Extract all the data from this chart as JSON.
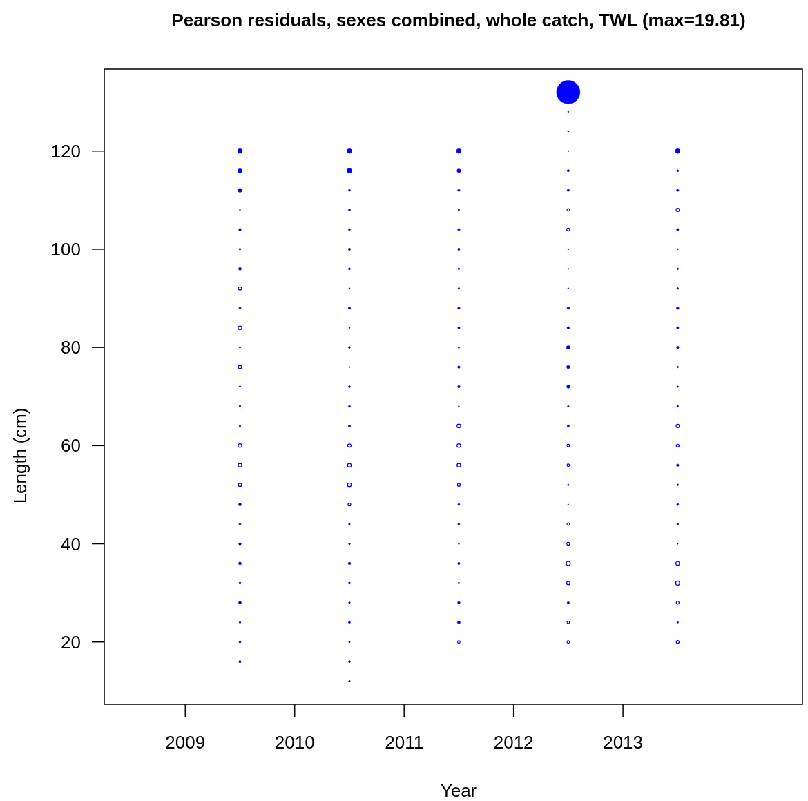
{
  "chart_data": {
    "type": "bubble",
    "title": "Pearson residuals, sexes combined, whole catch, TWL (max=19.81)",
    "xlabel": "Year",
    "ylabel": "Length (cm)",
    "xlim": [
      2008.26,
      2014.64
    ],
    "ylim": [
      7.3,
      136.7
    ],
    "xticks": [
      2009,
      2010,
      2011,
      2012,
      2013
    ],
    "yticks": [
      20,
      40,
      60,
      80,
      100,
      120
    ],
    "grid": false,
    "marker": "circle",
    "series": [
      {
        "color": "#0000ff",
        "x": [
          2009.5,
          2009.5,
          2009.5,
          2009.5,
          2009.5,
          2009.5,
          2009.5,
          2009.5,
          2009.5,
          2009.5,
          2009.5,
          2009.5,
          2009.5,
          2009.5,
          2009.5,
          2009.5,
          2009.5,
          2009.5,
          2009.5,
          2009.5,
          2009.5,
          2010.5,
          2010.5,
          2010.5,
          2010.5,
          2010.5,
          2010.5,
          2010.5,
          2010.5,
          2010.5,
          2010.5,
          2010.5,
          2010.5,
          2010.5,
          2010.5,
          2010.5,
          2010.5,
          2010.5,
          2010.5,
          2010.5,
          2010.5,
          2010.5,
          2010.5,
          2010.5,
          2010.5,
          2011.5,
          2011.5,
          2011.5,
          2011.5,
          2011.5,
          2011.5,
          2011.5,
          2011.5,
          2011.5,
          2011.5,
          2011.5,
          2011.5,
          2011.5,
          2011.5,
          2011.5,
          2011.5,
          2011.5,
          2011.5,
          2011.5,
          2011.5,
          2011.5,
          2012.5,
          2012.5,
          2012.5,
          2012.5,
          2012.5,
          2012.5,
          2012.5,
          2012.5,
          2012.5,
          2012.5,
          2012.5,
          2012.5,
          2012.5,
          2012.5,
          2012.5,
          2012.5,
          2012.5,
          2012.5,
          2012.5,
          2013.5,
          2013.5,
          2013.5,
          2013.5,
          2013.5,
          2013.5,
          2013.5,
          2013.5,
          2013.5,
          2013.5,
          2013.5,
          2013.5,
          2013.5,
          2013.5,
          2013.5,
          2013.5,
          2013.5,
          2013.5,
          2013.5
        ],
        "values": [
          120,
          116,
          112,
          108,
          104,
          100,
          96,
          88,
          80,
          72,
          68,
          64,
          48,
          44,
          40,
          36,
          32,
          28,
          24,
          20,
          16,
          120,
          116,
          112,
          108,
          104,
          100,
          96,
          92,
          88,
          84,
          80,
          76,
          72,
          68,
          64,
          44,
          40,
          36,
          32,
          28,
          24,
          20,
          16,
          12,
          120,
          116,
          112,
          108,
          104,
          100,
          96,
          92,
          88,
          84,
          80,
          76,
          72,
          68,
          48,
          44,
          40,
          36,
          32,
          28,
          24,
          132,
          128,
          124,
          120,
          116,
          112,
          100,
          96,
          92,
          88,
          84,
          80,
          76,
          72,
          68,
          64,
          52,
          48,
          28,
          120,
          116,
          112,
          104,
          100,
          96,
          92,
          88,
          84,
          80,
          76,
          72,
          68,
          56,
          52,
          48,
          44,
          40,
          24
        ],
        "sizes": [
          0.04,
          0.03,
          0.03,
          0.003,
          0.012,
          0.006,
          0.015,
          0.008,
          0.005,
          0.006,
          0.006,
          0.006,
          0.015,
          0.008,
          0.012,
          0.015,
          0.008,
          0.015,
          0.006,
          0.008,
          0.01,
          0.04,
          0.04,
          0.008,
          0.008,
          0.008,
          0.01,
          0.008,
          0.003,
          0.01,
          0.003,
          0.008,
          0.003,
          0.008,
          0.008,
          0.01,
          0.006,
          0.006,
          0.012,
          0.008,
          0.006,
          0.008,
          0.005,
          0.008,
          0.006,
          0.04,
          0.025,
          0.01,
          0.005,
          0.01,
          0.01,
          0.006,
          0.006,
          0.01,
          0.01,
          0.006,
          0.012,
          0.012,
          0.003,
          0.008,
          0.008,
          0.003,
          0.01,
          0.005,
          0.012,
          0.015,
          1,
          0.003,
          0.003,
          0.003,
          0.01,
          0.01,
          0.003,
          0.003,
          0.003,
          0.012,
          0.012,
          0.025,
          0.02,
          0.02,
          0.005,
          0.01,
          0.005,
          0.002,
          0.01,
          0.04,
          0.008,
          0.01,
          0.01,
          0.003,
          0.006,
          0.006,
          0.012,
          0.01,
          0.012,
          0.005,
          0.006,
          0.006,
          0.012,
          0.006,
          0.008,
          0.006,
          0.002,
          0.005
        ]
      },
      {
        "color": "#0000ff",
        "x": [
          2009.5,
          2009.5,
          2009.5,
          2009.5,
          2009.5,
          2009.5,
          2010.5,
          2010.5,
          2010.5,
          2010.5,
          2011.5,
          2011.5,
          2011.5,
          2011.5,
          2011.5,
          2012.5,
          2012.5,
          2012.5,
          2012.5,
          2012.5,
          2012.5,
          2012.5,
          2012.5,
          2012.5,
          2012.5,
          2013.5,
          2013.5,
          2013.5,
          2013.5,
          2013.5,
          2013.5,
          2013.5
        ],
        "values": [
          92,
          84,
          76,
          60,
          56,
          52,
          60,
          56,
          52,
          48,
          64,
          60,
          56,
          52,
          20,
          108,
          104,
          60,
          56,
          44,
          40,
          36,
          32,
          24,
          20,
          108,
          64,
          60,
          36,
          32,
          28,
          20
        ],
        "sizes": [
          0.02,
          0.025,
          0.02,
          0.025,
          0.025,
          0.02,
          0.02,
          0.025,
          0.025,
          0.015,
          0.025,
          0.025,
          0.025,
          0.015,
          0.012,
          0.012,
          0.015,
          0.012,
          0.012,
          0.012,
          0.015,
          0.03,
          0.02,
          0.012,
          0.012,
          0.02,
          0.02,
          0.015,
          0.025,
          0.03,
          0.015,
          0.015
        ]
      }
    ]
  }
}
